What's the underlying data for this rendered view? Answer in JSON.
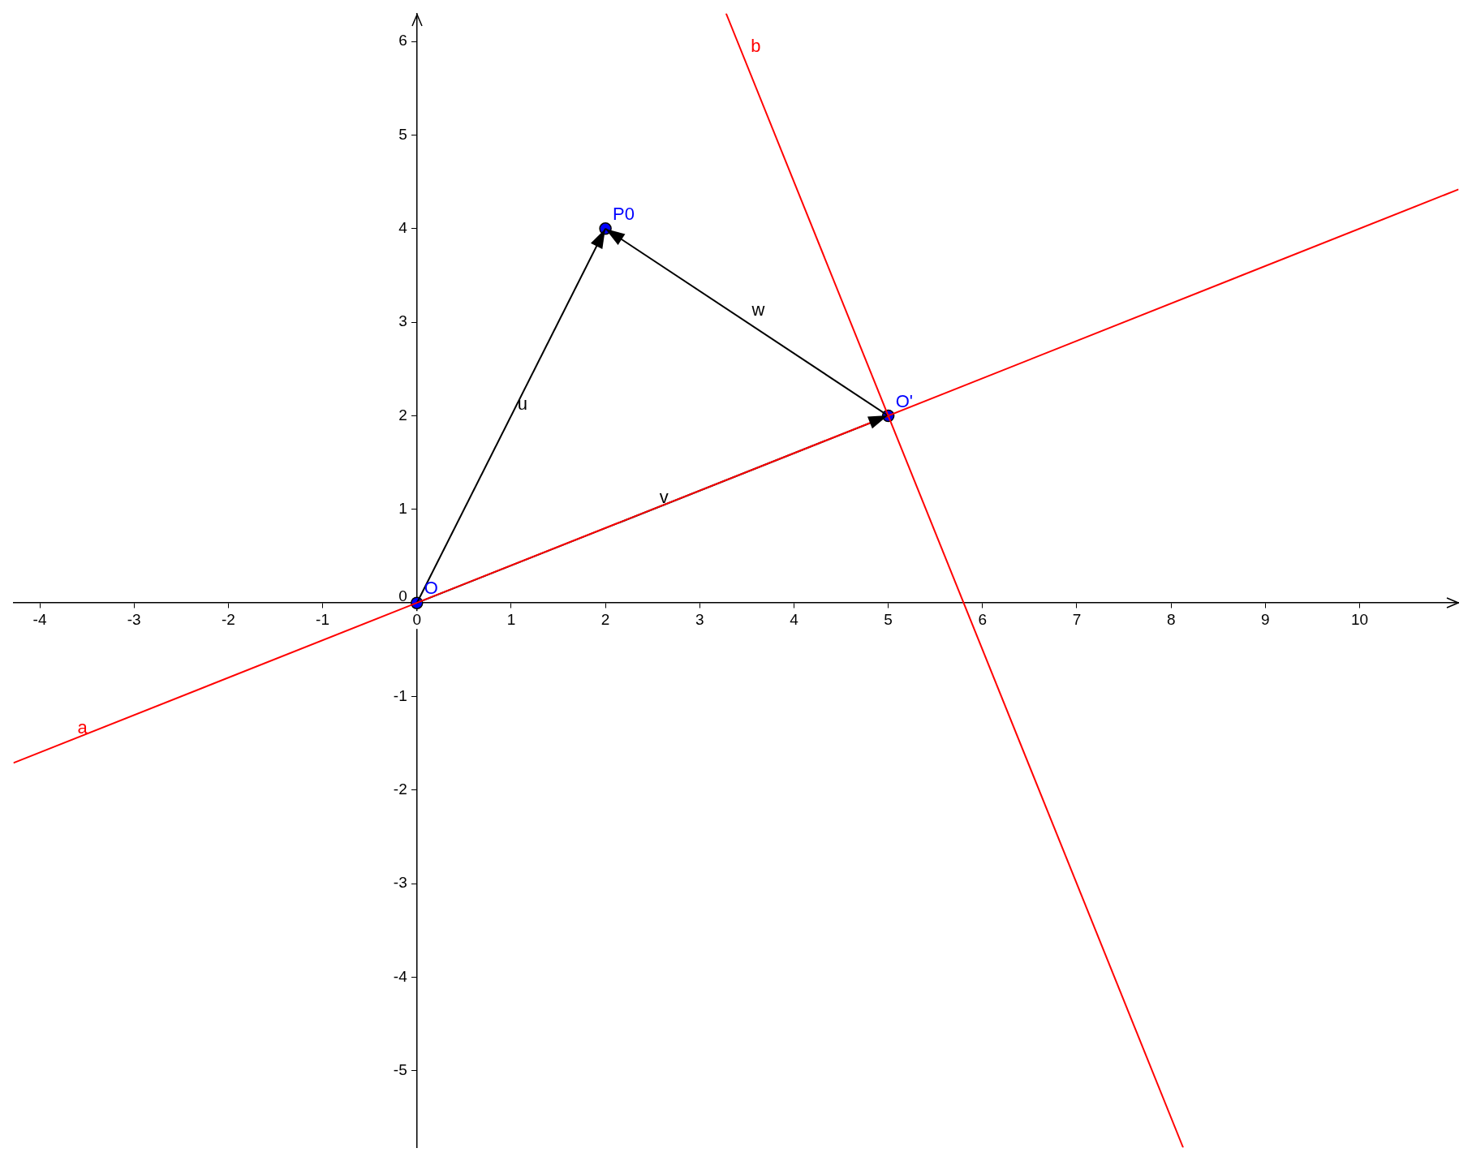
{
  "chart_data": {
    "type": "line",
    "xlim": [
      -4.28,
      11.05
    ],
    "ylim": [
      -5.82,
      6.3
    ],
    "xticks": [
      -4,
      -3,
      -2,
      -1,
      0,
      1,
      2,
      3,
      4,
      5,
      6,
      7,
      8,
      9,
      10
    ],
    "yticks": [
      -5,
      -4,
      -3,
      -2,
      -1,
      0,
      1,
      2,
      3,
      4,
      5,
      6
    ],
    "grid": false,
    "legend": false,
    "series": [
      {
        "name": "a",
        "type": "line",
        "color": "#ff0000",
        "x": [
          -4.28,
          11.05
        ],
        "values": [
          -1.71,
          4.42
        ]
      },
      {
        "name": "b",
        "type": "line",
        "color": "#ff0000",
        "x": [
          3.28,
          8.128
        ],
        "values": [
          6.3,
          -5.82
        ]
      },
      {
        "name": "u",
        "type": "line",
        "color": "#000000",
        "x": [
          0,
          2
        ],
        "values": [
          0,
          4
        ]
      },
      {
        "name": "v",
        "type": "line",
        "color": "#000000",
        "x": [
          0,
          5
        ],
        "values": [
          0,
          2
        ]
      },
      {
        "name": "w",
        "type": "line",
        "color": "#000000",
        "x": [
          5,
          2
        ],
        "values": [
          2,
          4
        ]
      },
      {
        "name": "O",
        "type": "scatter",
        "color": "#0000ff",
        "marker": "circle",
        "x": [
          0
        ],
        "values": [
          0
        ]
      },
      {
        "name": "P0",
        "type": "scatter",
        "color": "#0000ff",
        "marker": "circle",
        "x": [
          2
        ],
        "values": [
          4
        ]
      },
      {
        "name": "O'",
        "type": "scatter",
        "color": "#0000ff",
        "marker": "circle",
        "x": [
          5
        ],
        "values": [
          2
        ]
      }
    ]
  }
}
